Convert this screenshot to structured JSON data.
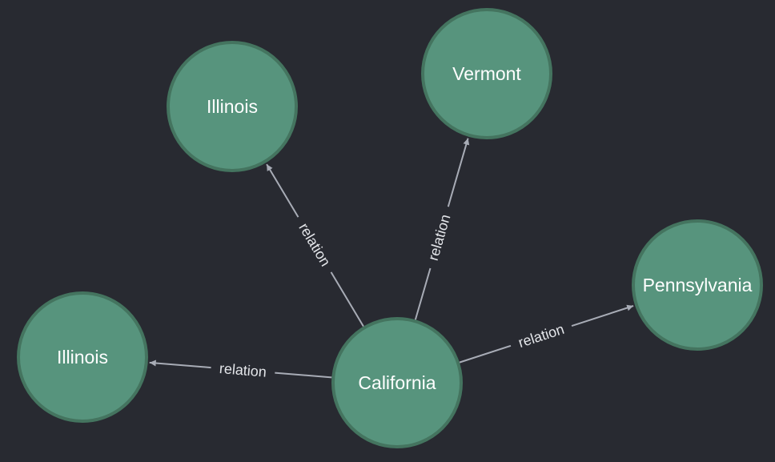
{
  "colors": {
    "background": "#282a31",
    "node_fill": "#57947d",
    "node_stroke": "#44745f",
    "node_text": "#ffffff",
    "edge": "#a8acb6",
    "edge_label": "#e4e6ea"
  },
  "graph": {
    "nodes": [
      {
        "id": "california",
        "label": "California"
      },
      {
        "id": "illinois-left",
        "label": "Illinois"
      },
      {
        "id": "illinois-top",
        "label": "Illinois"
      },
      {
        "id": "vermont",
        "label": "Vermont"
      },
      {
        "id": "pennsylvania",
        "label": "Pennsylvania"
      }
    ],
    "edges": [
      {
        "from": "california",
        "to": "illinois-top",
        "label": "relation"
      },
      {
        "from": "california",
        "to": "vermont",
        "label": "relation"
      },
      {
        "from": "california",
        "to": "pennsylvania",
        "label": "relation"
      },
      {
        "from": "california",
        "to": "illinois-left",
        "label": "relation"
      }
    ]
  }
}
